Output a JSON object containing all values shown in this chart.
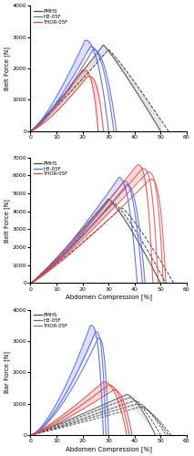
{
  "pmhs_color": "#444444",
  "h3_color": "#5566dd",
  "thor_color": "#dd4444",
  "xlabel": "Abdomen Compression [%]",
  "panel1": {
    "ylabel": "Belt Force [N]",
    "ylim": [
      0,
      4000
    ],
    "yticks": [
      0,
      1000,
      2000,
      3000,
      4000
    ],
    "xlim": [
      0,
      60
    ],
    "xticks": [
      0,
      10,
      20,
      30,
      40,
      50,
      60
    ]
  },
  "panel2": {
    "ylabel": "Belt Force [N]",
    "ylim": [
      0,
      7000
    ],
    "yticks": [
      0,
      1000,
      2000,
      3000,
      4000,
      5000,
      6000,
      7000
    ],
    "xlim": [
      0,
      60
    ],
    "xticks": [
      0,
      10,
      20,
      30,
      40,
      50,
      60
    ]
  },
  "panel3": {
    "ylabel": "Bar Force [N]",
    "ylim": [
      0,
      4000
    ],
    "yticks": [
      0,
      1000,
      2000,
      3000,
      4000
    ],
    "xlim": [
      0,
      60
    ],
    "xticks": [
      0,
      10,
      20,
      30,
      40,
      50,
      60
    ]
  }
}
